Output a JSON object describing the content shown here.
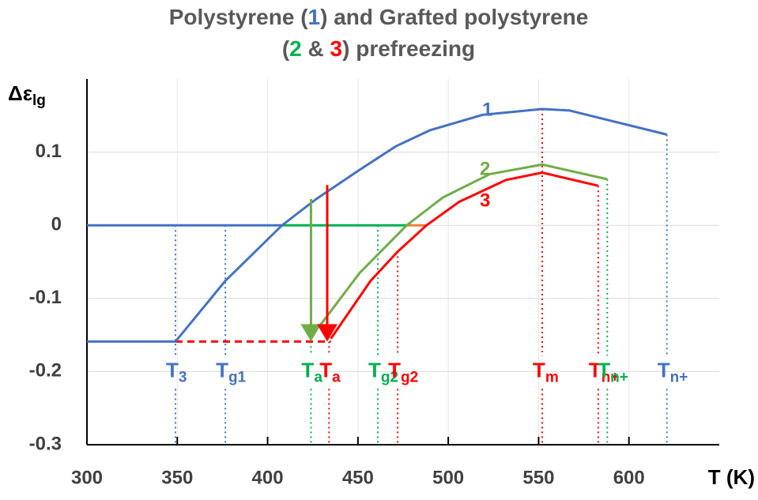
{
  "chart_data": {
    "type": "line",
    "title_lines": [
      [
        {
          "text": "Polystyrene (",
          "color": "#595959"
        },
        {
          "text": "1",
          "color": "#4472c4"
        },
        {
          "text": ") and Grafted polystyrene",
          "color": "#595959"
        }
      ],
      [
        {
          "text": "(",
          "color": "#595959"
        },
        {
          "text": "2",
          "color": "#00b050"
        },
        {
          "text": " & ",
          "color": "#595959"
        },
        {
          "text": "3",
          "color": "#ff0000"
        },
        {
          "text": ") prefreezing",
          "color": "#595959"
        }
      ]
    ],
    "y_label": {
      "main": "Δε",
      "sub": "lg"
    },
    "x_label": "T (K)",
    "xlim": [
      300,
      650
    ],
    "xticks": [
      300,
      350,
      400,
      450,
      500,
      550,
      600
    ],
    "ylim": [
      -0.3,
      0.2
    ],
    "yticks": [
      -0.3,
      -0.2,
      -0.1,
      0,
      0.1
    ],
    "grid": true,
    "series": [
      {
        "name": "1",
        "color": "#4472c4",
        "x": [
          300,
          349,
          376.6,
          408,
          427,
          451,
          471,
          490,
          519,
          552,
          567,
          621
        ],
        "values": [
          -0.159,
          -0.159,
          -0.076,
          0,
          0.036,
          0.076,
          0.108,
          0.13,
          0.151,
          0.159,
          0.157,
          0.124
        ]
      },
      {
        "name": "2",
        "color": "#70ad47",
        "x": [
          429,
          451,
          477,
          497,
          523,
          552,
          588
        ],
        "values": [
          -0.137,
          -0.065,
          0,
          0.038,
          0.07,
          0.083,
          0.063
        ]
      },
      {
        "name": "3",
        "color": "#ff0000",
        "x": [
          435,
          457,
          472,
          488,
          506,
          532,
          552,
          583
        ],
        "values": [
          -0.155,
          -0.076,
          -0.036,
          0,
          0.032,
          0.062,
          0.072,
          0.054
        ]
      }
    ],
    "zero_lines": [
      {
        "color": "#4472c4",
        "x": [
          300,
          408
        ],
        "values": [
          0,
          0
        ]
      },
      {
        "color": "#00b050",
        "x": [
          408,
          477
        ],
        "values": [
          0,
          0
        ]
      },
      {
        "color": "#ed7d31",
        "x": [
          477,
          488
        ],
        "values": [
          0,
          0
        ]
      }
    ],
    "dashed_line": {
      "color": "#ff0000",
      "x": [
        349,
        435
      ],
      "values": [
        -0.159,
        -0.159
      ]
    },
    "arrows": [
      {
        "color": "#70ad47",
        "x": 424,
        "from": 0.036,
        "to": -0.159
      },
      {
        "color": "#ff0000",
        "x": 433,
        "from": 0.055,
        "to": -0.159
      }
    ],
    "markers": [
      {
        "main": "T",
        "sub": "3",
        "x": 349,
        "top": 0,
        "color": "#4472c4"
      },
      {
        "main": "T",
        "sub": "g1",
        "x": 376.6,
        "top": 0,
        "color": "#4472c4"
      },
      {
        "main": "T",
        "sub": "a",
        "x": 424,
        "top": -0.159,
        "color": "#00b050"
      },
      {
        "main": "T",
        "sub": "a",
        "x": 434,
        "top": -0.159,
        "color": "#ff0000"
      },
      {
        "main": "T",
        "sub": "g2",
        "x": 461,
        "top": 0,
        "color": "#00b050"
      },
      {
        "main": "T",
        "sub": "g2",
        "x": 472,
        "top": -0.036,
        "color": "#ff0000"
      },
      {
        "main": "T",
        "sub": "m",
        "x": 552,
        "top": 0.159,
        "color": "#ff0000"
      },
      {
        "main": "T",
        "sub": "n+",
        "x": 583,
        "top": 0.054,
        "color": "#ff0000"
      },
      {
        "main": "T",
        "sub": "n+",
        "x": 588,
        "top": 0.063,
        "color": "#00b050"
      },
      {
        "main": "T",
        "sub": "n+",
        "x": 621,
        "top": 0.124,
        "color": "#4472c4"
      }
    ],
    "marker_colors": {
      "#4472c4": "#4472c4"
    }
  }
}
